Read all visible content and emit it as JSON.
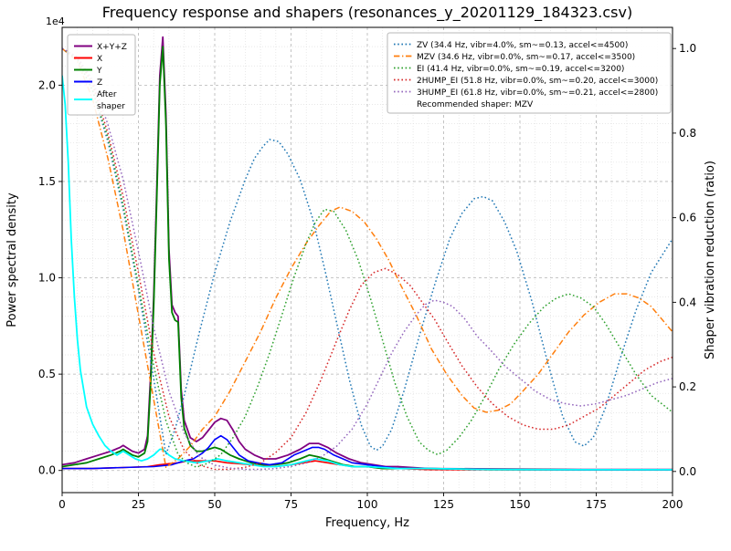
{
  "chart_data": {
    "type": "line",
    "title": "Frequency response and shapers (resonances_y_20201129_184323.csv)",
    "xlabel": "Frequency, Hz",
    "ylabel_left": "Power spectral density",
    "ylabel_right": "Shaper vibration reduction (ratio)",
    "offset_label": "1e4",
    "xlim": [
      0,
      200
    ],
    "left_ylim": [
      -0.115,
      2.3
    ],
    "right_ylim": [
      -0.05,
      1.05
    ],
    "x_ticks": [
      0,
      25,
      50,
      75,
      100,
      125,
      150,
      175,
      200
    ],
    "left_y_ticks": [
      0.0,
      0.5,
      1.0,
      1.5,
      2.0
    ],
    "right_y_ticks": [
      0.0,
      0.2,
      0.4,
      0.6,
      0.8,
      1.0
    ],
    "grid": {
      "major": true,
      "minor": true,
      "x_minor_step": 5,
      "y_left_minor_step": 0.1
    },
    "recommended_shaper": "MZV",
    "legend_right_note": "Recommended shaper: MZV",
    "series": [
      {
        "name": "X+Y+Z",
        "label": "X+Y+Z",
        "legend": "left",
        "axis": "left",
        "color": "#800080",
        "style": "solid",
        "width": 1.8,
        "x": [
          0,
          4,
          8,
          12,
          16,
          19,
          20,
          21,
          23,
          25,
          27,
          28,
          29,
          30,
          31,
          32,
          33,
          34,
          35,
          36,
          37,
          38,
          39,
          40,
          42,
          44,
          46,
          48,
          50,
          52,
          54,
          56,
          58,
          60,
          63,
          66,
          70,
          74,
          78,
          81,
          84,
          87,
          90,
          94,
          98,
          102,
          106,
          110,
          120,
          140,
          170,
          200
        ],
        "y": [
          0.03,
          0.04,
          0.06,
          0.08,
          0.1,
          0.12,
          0.13,
          0.12,
          0.1,
          0.09,
          0.11,
          0.18,
          0.5,
          0.9,
          1.45,
          2.05,
          2.25,
          1.85,
          1.15,
          0.86,
          0.82,
          0.8,
          0.42,
          0.26,
          0.17,
          0.15,
          0.17,
          0.21,
          0.25,
          0.27,
          0.26,
          0.21,
          0.15,
          0.11,
          0.08,
          0.06,
          0.06,
          0.08,
          0.11,
          0.14,
          0.14,
          0.12,
          0.09,
          0.06,
          0.04,
          0.03,
          0.02,
          0.02,
          0.01,
          0.008,
          0.005,
          0.005
        ]
      },
      {
        "name": "X",
        "label": "X",
        "legend": "left",
        "axis": "left",
        "color": "#ff0000",
        "style": "solid",
        "width": 1.6,
        "x": [
          0,
          10,
          20,
          28,
          32,
          35,
          38,
          41,
          44,
          47,
          50,
          54,
          58,
          62,
          66,
          70,
          75,
          79,
          83,
          87,
          91,
          95,
          100,
          105,
          110,
          120,
          140,
          170,
          200
        ],
        "y": [
          0.01,
          0.01,
          0.015,
          0.02,
          0.03,
          0.035,
          0.04,
          0.05,
          0.05,
          0.05,
          0.05,
          0.04,
          0.035,
          0.03,
          0.025,
          0.02,
          0.03,
          0.04,
          0.05,
          0.04,
          0.03,
          0.02,
          0.02,
          0.01,
          0.01,
          0.005,
          0.004,
          0.003,
          0.003
        ]
      },
      {
        "name": "Y",
        "label": "Y",
        "legend": "left",
        "axis": "left",
        "color": "#008000",
        "style": "solid",
        "width": 1.8,
        "x": [
          0,
          4,
          8,
          12,
          16,
          19,
          20,
          21,
          23,
          25,
          27,
          28,
          29,
          30,
          31,
          32,
          33,
          34,
          35,
          36,
          37,
          38,
          39,
          40,
          42,
          44,
          46,
          48,
          50,
          52,
          55,
          58,
          62,
          66,
          70,
          74,
          78,
          81,
          84,
          88,
          92,
          96,
          100,
          105,
          110,
          120,
          140,
          170,
          200
        ],
        "y": [
          0.02,
          0.03,
          0.04,
          0.06,
          0.08,
          0.1,
          0.11,
          0.1,
          0.08,
          0.07,
          0.09,
          0.15,
          0.45,
          0.85,
          1.4,
          2.0,
          2.2,
          1.8,
          1.1,
          0.82,
          0.78,
          0.77,
          0.38,
          0.22,
          0.13,
          0.1,
          0.1,
          0.11,
          0.12,
          0.11,
          0.08,
          0.06,
          0.04,
          0.03,
          0.03,
          0.04,
          0.06,
          0.08,
          0.07,
          0.05,
          0.03,
          0.02,
          0.02,
          0.01,
          0.01,
          0.01,
          0.005,
          0.004,
          0.004
        ]
      },
      {
        "name": "Z",
        "label": "Z",
        "legend": "left",
        "axis": "left",
        "color": "#0000ff",
        "style": "solid",
        "width": 1.6,
        "x": [
          0,
          10,
          20,
          30,
          36,
          40,
          43,
          46,
          48,
          50,
          52,
          54,
          56,
          58,
          61,
          64,
          68,
          72,
          76,
          79,
          82,
          84,
          86,
          89,
          92,
          95,
          100,
          105,
          110,
          120,
          140,
          170,
          200
        ],
        "y": [
          0.01,
          0.01,
          0.015,
          0.02,
          0.03,
          0.05,
          0.06,
          0.09,
          0.12,
          0.16,
          0.18,
          0.16,
          0.12,
          0.08,
          0.05,
          0.04,
          0.03,
          0.04,
          0.08,
          0.1,
          0.12,
          0.12,
          0.11,
          0.08,
          0.06,
          0.04,
          0.03,
          0.02,
          0.01,
          0.01,
          0.005,
          0.004,
          0.004
        ]
      },
      {
        "name": "After shaper",
        "label": "After\nshaper",
        "legend": "left",
        "axis": "left",
        "color": "#00ffff",
        "style": "solid",
        "width": 1.8,
        "x": [
          0,
          1,
          2,
          3,
          4,
          5,
          6,
          8,
          10,
          12,
          14,
          16,
          18,
          20,
          22,
          24,
          26,
          28,
          30,
          32,
          33,
          35,
          37,
          40,
          44,
          48,
          51,
          54,
          58,
          62,
          66,
          70,
          75,
          80,
          83,
          87,
          91,
          95,
          100,
          110,
          120,
          140,
          170,
          200
        ],
        "y": [
          2.05,
          1.9,
          1.6,
          1.2,
          0.9,
          0.68,
          0.52,
          0.33,
          0.24,
          0.18,
          0.13,
          0.1,
          0.08,
          0.1,
          0.08,
          0.06,
          0.05,
          0.06,
          0.08,
          0.11,
          0.11,
          0.08,
          0.06,
          0.05,
          0.04,
          0.05,
          0.06,
          0.05,
          0.04,
          0.03,
          0.02,
          0.02,
          0.03,
          0.05,
          0.06,
          0.05,
          0.03,
          0.02,
          0.02,
          0.01,
          0.01,
          0.005,
          0.004,
          0.004
        ]
      },
      {
        "name": "ZV",
        "label": "ZV (34.4 Hz, vibr=4.0%, sm~=0.13, accel<=4500)",
        "legend": "right",
        "axis": "right",
        "color": "#1f77b4",
        "style": "dotted",
        "width": 1.5,
        "x": [
          0,
          5,
          10,
          15,
          20,
          25,
          30,
          32,
          34,
          37,
          40,
          45,
          50,
          55,
          60,
          63,
          66,
          68,
          71,
          74,
          78,
          82,
          86,
          90,
          94,
          98,
          101,
          103,
          105,
          108,
          112,
          117,
          122,
          127,
          131,
          135,
          138,
          141,
          145,
          149,
          154,
          159,
          164,
          168,
          171,
          174,
          178,
          183,
          188,
          193,
          200
        ],
        "y": [
          1.0,
          0.975,
          0.9,
          0.78,
          0.62,
          0.43,
          0.22,
          0.13,
          0.04,
          0.1,
          0.18,
          0.33,
          0.47,
          0.59,
          0.69,
          0.74,
          0.77,
          0.785,
          0.78,
          0.75,
          0.69,
          0.6,
          0.48,
          0.35,
          0.22,
          0.11,
          0.06,
          0.05,
          0.06,
          0.1,
          0.19,
          0.32,
          0.44,
          0.55,
          0.61,
          0.645,
          0.65,
          0.64,
          0.59,
          0.52,
          0.4,
          0.26,
          0.13,
          0.07,
          0.06,
          0.08,
          0.15,
          0.27,
          0.38,
          0.47,
          0.55
        ]
      },
      {
        "name": "MZV",
        "label": "MZV (34.6 Hz, vibr=0.0%, sm~=0.17, accel<=3500)",
        "legend": "right",
        "axis": "right",
        "color": "#ff7f0e",
        "style": "dashdot",
        "width": 1.5,
        "x": [
          0,
          5,
          10,
          15,
          20,
          25,
          30,
          34,
          38,
          42,
          46,
          50,
          55,
          60,
          65,
          70,
          75,
          80,
          84,
          88,
          91,
          95,
          99,
          103,
          107,
          111,
          116,
          121,
          126,
          131,
          135,
          139,
          143,
          147,
          151,
          156,
          161,
          166,
          171,
          176,
          181,
          185,
          189,
          193,
          200
        ],
        "y": [
          1.0,
          0.97,
          0.88,
          0.74,
          0.57,
          0.37,
          0.17,
          0.01,
          0.03,
          0.06,
          0.1,
          0.13,
          0.19,
          0.26,
          0.33,
          0.41,
          0.48,
          0.54,
          0.58,
          0.615,
          0.625,
          0.615,
          0.59,
          0.55,
          0.5,
          0.44,
          0.37,
          0.29,
          0.23,
          0.18,
          0.15,
          0.14,
          0.145,
          0.16,
          0.19,
          0.23,
          0.28,
          0.33,
          0.37,
          0.4,
          0.42,
          0.42,
          0.41,
          0.39,
          0.33
        ]
      },
      {
        "name": "EI",
        "label": "EI (41.4 Hz, vibr=0.0%, sm~=0.19, accel<=3200)",
        "legend": "right",
        "axis": "right",
        "color": "#2ca02c",
        "style": "dotted",
        "width": 1.5,
        "x": [
          0,
          5,
          10,
          15,
          20,
          25,
          30,
          34,
          38,
          41,
          44,
          48,
          52,
          56,
          60,
          64,
          68,
          72,
          76,
          80,
          83,
          86,
          89,
          93,
          97,
          101,
          105,
          109,
          113,
          117,
          120,
          123,
          126,
          130,
          134,
          138,
          143,
          148,
          153,
          158,
          162,
          166,
          170,
          174,
          178,
          183,
          188,
          193,
          200
        ],
        "y": [
          1.0,
          0.975,
          0.9,
          0.79,
          0.63,
          0.44,
          0.25,
          0.12,
          0.04,
          0.02,
          0.01,
          0.02,
          0.04,
          0.08,
          0.13,
          0.2,
          0.28,
          0.37,
          0.46,
          0.54,
          0.59,
          0.62,
          0.615,
          0.57,
          0.5,
          0.41,
          0.31,
          0.21,
          0.13,
          0.07,
          0.05,
          0.04,
          0.05,
          0.08,
          0.12,
          0.17,
          0.24,
          0.3,
          0.35,
          0.39,
          0.41,
          0.42,
          0.41,
          0.39,
          0.35,
          0.29,
          0.23,
          0.18,
          0.14
        ]
      },
      {
        "name": "2HUMP_EI",
        "label": "2HUMP_EI (51.8 Hz, vibr=0.0%, sm~=0.20, accel<=3000)",
        "legend": "right",
        "axis": "right",
        "color": "#d62728",
        "style": "dotted",
        "width": 1.5,
        "x": [
          0,
          5,
          10,
          15,
          20,
          25,
          30,
          35,
          40,
          45,
          50,
          55,
          60,
          65,
          70,
          75,
          80,
          85,
          90,
          94,
          98,
          102,
          106,
          110,
          114,
          118,
          122,
          126,
          131,
          136,
          141,
          146,
          151,
          156,
          161,
          166,
          171,
          176,
          181,
          186,
          191,
          196,
          200
        ],
        "y": [
          1.0,
          0.98,
          0.915,
          0.8,
          0.65,
          0.47,
          0.28,
          0.13,
          0.05,
          0.015,
          0.005,
          0.005,
          0.01,
          0.02,
          0.045,
          0.08,
          0.14,
          0.22,
          0.31,
          0.38,
          0.44,
          0.47,
          0.48,
          0.465,
          0.44,
          0.4,
          0.36,
          0.31,
          0.25,
          0.2,
          0.16,
          0.13,
          0.11,
          0.1,
          0.1,
          0.11,
          0.13,
          0.15,
          0.18,
          0.21,
          0.24,
          0.26,
          0.27
        ]
      },
      {
        "name": "3HUMP_EI",
        "label": "3HUMP_EI (61.8 Hz, vibr=0.0%, sm~=0.21, accel<=2800)",
        "legend": "right",
        "axis": "right",
        "color": "#9467bd",
        "style": "dotted",
        "width": 1.5,
        "x": [
          0,
          5,
          10,
          15,
          20,
          25,
          30,
          35,
          40,
          45,
          50,
          55,
          60,
          65,
          70,
          75,
          80,
          85,
          90,
          95,
          100,
          104,
          108,
          112,
          116,
          119,
          122,
          125,
          128,
          132,
          136,
          140,
          145,
          150,
          155,
          160,
          165,
          170,
          175,
          180,
          185,
          190,
          195,
          200
        ],
        "y": [
          1.0,
          0.98,
          0.925,
          0.82,
          0.69,
          0.52,
          0.34,
          0.19,
          0.09,
          0.035,
          0.015,
          0.008,
          0.005,
          0.005,
          0.007,
          0.012,
          0.02,
          0.035,
          0.06,
          0.1,
          0.16,
          0.22,
          0.28,
          0.33,
          0.37,
          0.395,
          0.405,
          0.4,
          0.39,
          0.36,
          0.32,
          0.29,
          0.25,
          0.22,
          0.19,
          0.17,
          0.16,
          0.155,
          0.16,
          0.17,
          0.18,
          0.195,
          0.21,
          0.22
        ]
      }
    ]
  }
}
